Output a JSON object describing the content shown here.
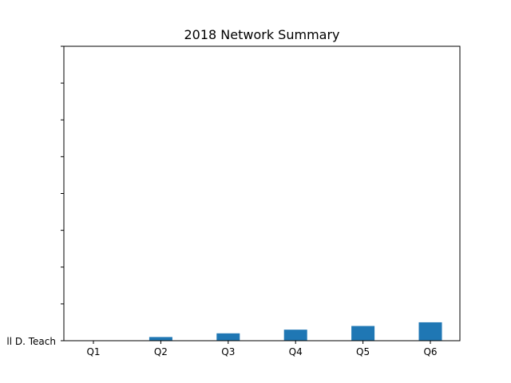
{
  "chart_data": {
    "type": "bar",
    "title": "2018 Network Summary",
    "xlabel": "",
    "ylabel": "",
    "categories": [
      "Q1",
      "Q2",
      "Q3",
      "Q4",
      "Q5",
      "Q6"
    ],
    "values": [
      0,
      1,
      2,
      3,
      4,
      5
    ],
    "ylim": [
      0,
      80
    ],
    "yticks": [
      0,
      10,
      20,
      30,
      40,
      50,
      60,
      70,
      80
    ],
    "ytick_labels": [
      "ll D. Teach",
      "",
      "",
      "",
      "",
      "",
      "",
      "",
      ""
    ],
    "grid": false,
    "legend": "none",
    "bar_color": "#1f77b4"
  }
}
